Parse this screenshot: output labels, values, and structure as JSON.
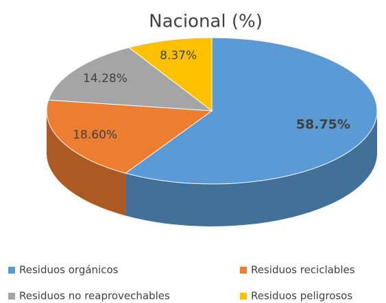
{
  "chart_data": {
    "type": "pie",
    "title": "Nacional (%)",
    "categories": [
      "Residuos orgánicos",
      "Residuos reciclables",
      "Residuos no reaprovechables",
      "Residuos peligrosos"
    ],
    "values": [
      58.75,
      18.6,
      14.28,
      8.37
    ],
    "value_labels": [
      "58.75%",
      "18.60%",
      "14.28%",
      "8.37%"
    ],
    "colors": [
      "#5b9bd5",
      "#ed7d31",
      "#a5a5a5",
      "#ffc000"
    ],
    "legend": "bottom"
  }
}
